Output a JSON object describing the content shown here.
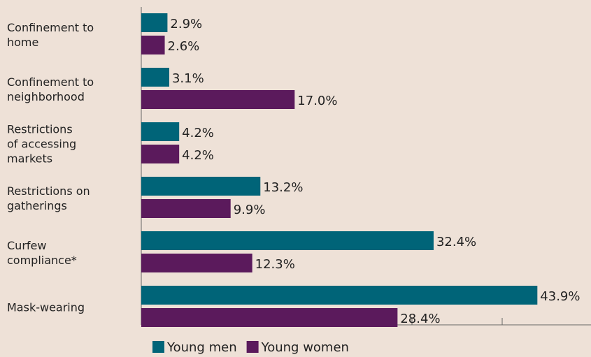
{
  "chart_data": {
    "type": "barh",
    "categories": [
      "Confinement to\nhome",
      "Confinement to\nneighborhood",
      "Restrictions\nof accessing\nmarkets",
      "Restrictions on\ngatherings",
      "Curfew\ncompliance*",
      "Mask-wearing"
    ],
    "series": [
      {
        "name": "Young men",
        "color": "#006478",
        "values": [
          2.9,
          3.1,
          4.2,
          13.2,
          32.4,
          43.9
        ],
        "value_labels": [
          "2.9%",
          "3.1%",
          "4.2%",
          "13.2%",
          "32.4%",
          "43.9%"
        ]
      },
      {
        "name": "Young women",
        "color": "#5b1a5c",
        "values": [
          2.6,
          17.0,
          4.2,
          9.9,
          12.3,
          28.4
        ],
        "value_labels": [
          "2.6%",
          "17.0%",
          "4.2%",
          "9.9%",
          "12.3%",
          "28.4%"
        ]
      }
    ],
    "xlim": [
      0,
      50
    ],
    "xticks": [
      0,
      10,
      20,
      30,
      40
    ]
  }
}
